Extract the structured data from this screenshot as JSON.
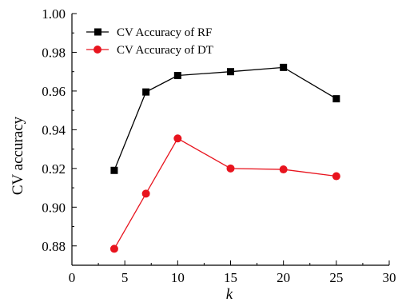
{
  "chart_data": {
    "type": "line",
    "title": "",
    "xlabel": "k",
    "ylabel": "CV accuracy",
    "xlim": [
      0,
      30
    ],
    "ylim": [
      0.87,
      1.0
    ],
    "x_ticks": [
      0,
      5,
      10,
      15,
      20,
      25,
      30
    ],
    "y_ticks": [
      0.88,
      0.9,
      0.92,
      0.94,
      0.96,
      0.98,
      1.0
    ],
    "x_tick_labels": [
      "0",
      "5",
      "10",
      "15",
      "20",
      "25",
      "30"
    ],
    "y_tick_labels": [
      "0.88",
      "0.90",
      "0.92",
      "0.94",
      "0.96",
      "0.98",
      "1.00"
    ],
    "grid": false,
    "legend_position": "top-left",
    "series": [
      {
        "name": "CV Accuracy of RF",
        "marker": "square",
        "line_color": "#000000",
        "marker_color": "#000000",
        "x": [
          4,
          7,
          10,
          15,
          20,
          25
        ],
        "y": [
          0.919,
          0.9595,
          0.968,
          0.97,
          0.9722,
          0.956
        ]
      },
      {
        "name": "CV Accuracy of DT",
        "marker": "circle",
        "line_color": "#e8141e",
        "marker_color": "#e8141e",
        "x": [
          4,
          7,
          10,
          15,
          20,
          25
        ],
        "y": [
          0.8785,
          0.907,
          0.9355,
          0.92,
          0.9195,
          0.916
        ]
      }
    ]
  }
}
